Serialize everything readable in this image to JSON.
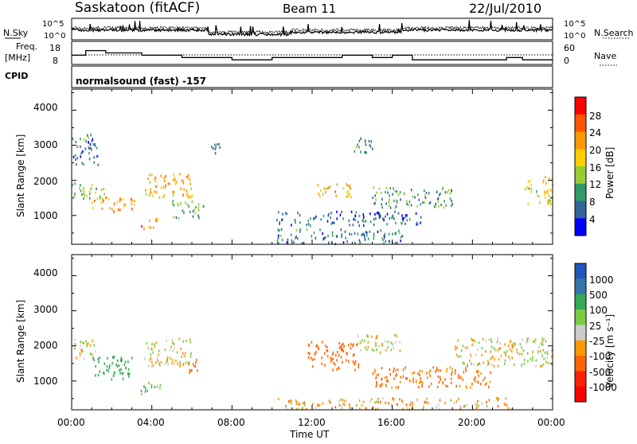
{
  "header": {
    "station": "Saskatoon (fitACF)",
    "beam": "Beam 11",
    "date": "22/Jul/2010"
  },
  "noise_panel": {
    "left_label": "N.Sky",
    "tick_high": "10^5",
    "tick_low": "10^0",
    "right_label": "N.Search"
  },
  "freq_panel": {
    "left_label_1": "Freq.",
    "left_label_2": "[MHz]",
    "ticks_left": [
      "18",
      "8"
    ],
    "ticks_right": [
      "60",
      "0"
    ],
    "right_label": "Nave"
  },
  "cpid": {
    "label": "CPID",
    "text": "normalsound (fast) -157"
  },
  "power_panel": {
    "ylabel": "Slant Range [km]",
    "yticks": [
      "4000",
      "3000",
      "2000",
      "1000"
    ],
    "colorbar_label": "Power [dB]",
    "colorbar_ticks": [
      "28",
      "24",
      "20",
      "16",
      "12",
      "8",
      "4"
    ],
    "colorbar_colors": [
      "#ff0000",
      "#ff5500",
      "#ff9900",
      "#ffcc00",
      "#99cc33",
      "#339966",
      "#336699",
      "#0000ff"
    ]
  },
  "velocity_panel": {
    "ylabel": "Slant Range [km]",
    "yticks": [
      "4000",
      "3000",
      "2000",
      "1000"
    ],
    "colorbar_label": "Velocity [m s⁻¹]",
    "colorbar_ticks": [
      "1000",
      "500",
      "100",
      "25",
      "-25",
      "-100",
      "-500",
      "-1000"
    ],
    "colorbar_colors": [
      "#2255bb",
      "#3377aa",
      "#33aa55",
      "#77cc44",
      "#cccccc",
      "#ff9900",
      "#ff6600",
      "#ff2200",
      "#ff0000"
    ]
  },
  "xaxis": {
    "label": "Time UT",
    "ticks": [
      "00:00",
      "04:00",
      "08:00",
      "12:00",
      "16:00",
      "20:00",
      "00:00"
    ]
  },
  "chart_data": [
    {
      "type": "heatmap",
      "title": "Power",
      "xlabel": "Time UT",
      "ylabel": "Slant Range [km]",
      "ylim": [
        180,
        4600
      ],
      "x_range_hours": [
        0,
        24
      ],
      "colorbar_range_db": [
        0,
        32
      ],
      "echo_regions": [
        {
          "t0": 0.0,
          "t1": 1.7,
          "r0": 1400,
          "r1": 1900,
          "value": 12
        },
        {
          "t0": 1.0,
          "t1": 3.2,
          "r0": 1100,
          "r1": 1500,
          "value": 22
        },
        {
          "t0": 3.6,
          "t1": 6.0,
          "r0": 1500,
          "r1": 2200,
          "value": 20
        },
        {
          "t0": 3.4,
          "t1": 4.3,
          "r0": 600,
          "r1": 900,
          "value": 24
        },
        {
          "t0": 5.0,
          "t1": 6.6,
          "r0": 900,
          "r1": 1400,
          "value": 12
        },
        {
          "t0": 6.8,
          "t1": 7.4,
          "r0": 2700,
          "r1": 3100,
          "value": 8
        },
        {
          "t0": 0.0,
          "t1": 1.3,
          "r0": 2400,
          "r1": 3300,
          "value": 8
        },
        {
          "t0": 10.2,
          "t1": 16.5,
          "r0": 180,
          "r1": 600,
          "value": 8
        },
        {
          "t0": 12.2,
          "t1": 14.0,
          "r0": 1500,
          "r1": 1900,
          "value": 20
        },
        {
          "t0": 10.2,
          "t1": 17.5,
          "r0": 700,
          "r1": 1100,
          "value": 6
        },
        {
          "t0": 15.0,
          "t1": 19.0,
          "r0": 1200,
          "r1": 1800,
          "value": 10
        },
        {
          "t0": 14.0,
          "t1": 15.0,
          "r0": 2700,
          "r1": 3200,
          "value": 8
        },
        {
          "t0": 22.6,
          "t1": 24.0,
          "r0": 1300,
          "r1": 2100,
          "value": 16
        }
      ]
    },
    {
      "type": "heatmap",
      "title": "Velocity",
      "xlabel": "Time UT",
      "ylabel": "Slant Range [km]",
      "ylim": [
        180,
        4600
      ],
      "x_range_hours": [
        0,
        24
      ],
      "colorbar_range_ms": [
        -1000,
        1000
      ],
      "echo_regions": [
        {
          "t0": 0.0,
          "t1": 1.2,
          "r0": 1600,
          "r1": 2200,
          "value": 0
        },
        {
          "t0": 1.0,
          "t1": 3.0,
          "r0": 1000,
          "r1": 1700,
          "value": 300
        },
        {
          "t0": 3.6,
          "t1": 6.0,
          "r0": 1400,
          "r1": 2200,
          "value": 0
        },
        {
          "t0": 5.8,
          "t1": 6.4,
          "r0": 1200,
          "r1": 1700,
          "value": -300
        },
        {
          "t0": 3.4,
          "t1": 4.4,
          "r0": 600,
          "r1": 1000,
          "value": 100
        },
        {
          "t0": 11.7,
          "t1": 14.3,
          "r0": 1300,
          "r1": 2100,
          "value": -300
        },
        {
          "t0": 10.2,
          "t1": 22.0,
          "r0": 180,
          "r1": 500,
          "value": -60
        },
        {
          "t0": 15.0,
          "t1": 21.0,
          "r0": 800,
          "r1": 1400,
          "value": -150
        },
        {
          "t0": 19.0,
          "t1": 24.0,
          "r0": 1400,
          "r1": 2200,
          "value": 0
        },
        {
          "t0": 14.2,
          "t1": 16.5,
          "r0": 1800,
          "r1": 2300,
          "value": 0
        }
      ]
    },
    {
      "type": "line",
      "title": "Frequency",
      "x_range_hours": [
        0,
        24
      ],
      "ylim_mhz": [
        8,
        18
      ],
      "steps": [
        [
          0,
          12
        ],
        [
          0.7,
          14
        ],
        [
          1.7,
          13
        ],
        [
          3.5,
          12
        ],
        [
          5.5,
          11
        ],
        [
          8,
          10
        ],
        [
          10,
          11
        ],
        [
          12.5,
          11
        ],
        [
          13.5,
          12
        ],
        [
          15,
          11
        ],
        [
          16,
          12
        ],
        [
          17,
          10
        ],
        [
          20,
          10
        ],
        [
          21.7,
          11
        ],
        [
          22.5,
          10
        ],
        [
          24,
          10
        ]
      ]
    }
  ]
}
